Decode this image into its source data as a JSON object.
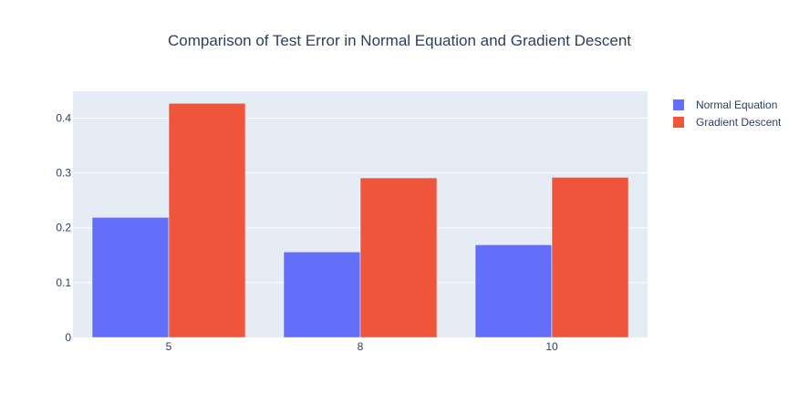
{
  "chart_data": {
    "type": "bar",
    "title": "Comparison of Test Error in Normal Equation and Gradient Descent",
    "xlabel": "",
    "ylabel": "",
    "categories": [
      "5",
      "8",
      "10"
    ],
    "series": [
      {
        "name": "Normal Equation",
        "values": [
          0.219,
          0.156,
          0.169
        ],
        "color": "#636efa"
      },
      {
        "name": "Gradient Descent",
        "values": [
          0.427,
          0.291,
          0.292
        ],
        "color": "#ef553b"
      }
    ],
    "ylim": [
      0,
      0.449
    ],
    "yticks": [
      {
        "value": 0,
        "label": "0"
      },
      {
        "value": 0.1,
        "label": "0.1"
      },
      {
        "value": 0.2,
        "label": "0.2"
      },
      {
        "value": 0.3,
        "label": "0.3"
      },
      {
        "value": 0.4,
        "label": "0.4"
      }
    ],
    "grid": true,
    "legend_position": "top-right",
    "plot_background": "#e5ecf6",
    "gridline_color": "#ffffff",
    "text_color": "#2a3f5f"
  }
}
